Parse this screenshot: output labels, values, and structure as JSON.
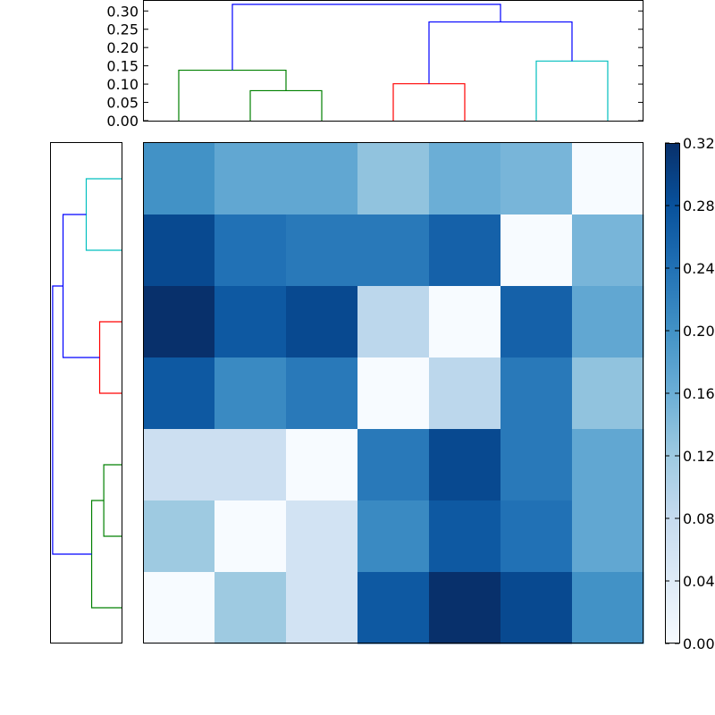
{
  "chart_data": [
    {
      "type": "dendrogram",
      "orientation": "top",
      "ylim": [
        0,
        0.33
      ],
      "yticks": [
        "0.00",
        "0.05",
        "0.10",
        "0.15",
        "0.20",
        "0.25",
        "0.30"
      ],
      "leaf_count": 7,
      "links": [
        {
          "x1": 1.5,
          "x2": 2.5,
          "height": 0.082,
          "color": "#008000"
        },
        {
          "x1": 0.5,
          "x2": 2.0,
          "height": 0.138,
          "color": "#008000"
        },
        {
          "x1": 3.5,
          "x2": 4.5,
          "height": 0.101,
          "color": "#ff0000"
        },
        {
          "x1": 5.5,
          "x2": 6.5,
          "height": 0.163,
          "color": "#00bfbf"
        },
        {
          "x1": 4.0,
          "x2": 6.0,
          "height": 0.27,
          "color": "#0000ff"
        },
        {
          "x1": 1.25,
          "x2": 5.0,
          "height": 0.318,
          "color": "#0000ff"
        }
      ]
    },
    {
      "type": "dendrogram",
      "orientation": "left",
      "leaf_count": 7,
      "links": [
        {
          "x1": 0.5,
          "x2": 1.5,
          "height": 0.163,
          "color": "#00bfbf"
        },
        {
          "x1": 2.5,
          "x2": 3.5,
          "height": 0.101,
          "color": "#ff0000"
        },
        {
          "x1": 1.0,
          "x2": 3.0,
          "height": 0.27,
          "color": "#0000ff"
        },
        {
          "x1": 4.5,
          "x2": 5.5,
          "height": 0.082,
          "color": "#008000"
        },
        {
          "x1": 5.0,
          "x2": 6.5,
          "height": 0.138,
          "color": "#008000"
        },
        {
          "x1": 2.0,
          "x2": 5.75,
          "height": 0.318,
          "color": "#0000ff"
        }
      ]
    },
    {
      "type": "heatmap",
      "colormap": "Blues",
      "vmin": 0,
      "vmax": 0.32,
      "values": [
        [
          0.2,
          0.17,
          0.17,
          0.13,
          0.16,
          0.15,
          0.0
        ],
        [
          0.29,
          0.24,
          0.23,
          0.23,
          0.26,
          0.0,
          0.15
        ],
        [
          0.32,
          0.27,
          0.29,
          0.09,
          0.0,
          0.26,
          0.17
        ],
        [
          0.27,
          0.21,
          0.23,
          0.0,
          0.09,
          0.23,
          0.13
        ],
        [
          0.07,
          0.07,
          0.0,
          0.23,
          0.29,
          0.23,
          0.17
        ],
        [
          0.12,
          0.0,
          0.06,
          0.21,
          0.27,
          0.24,
          0.17
        ],
        [
          0.0,
          0.12,
          0.06,
          0.27,
          0.32,
          0.29,
          0.2
        ]
      ]
    },
    {
      "type": "colorbar",
      "colormap": "Blues",
      "ticks": [
        "0.00",
        "0.04",
        "0.08",
        "0.12",
        "0.16",
        "0.20",
        "0.24",
        "0.28",
        "0.32"
      ],
      "vmin": 0,
      "vmax": 0.32
    }
  ]
}
